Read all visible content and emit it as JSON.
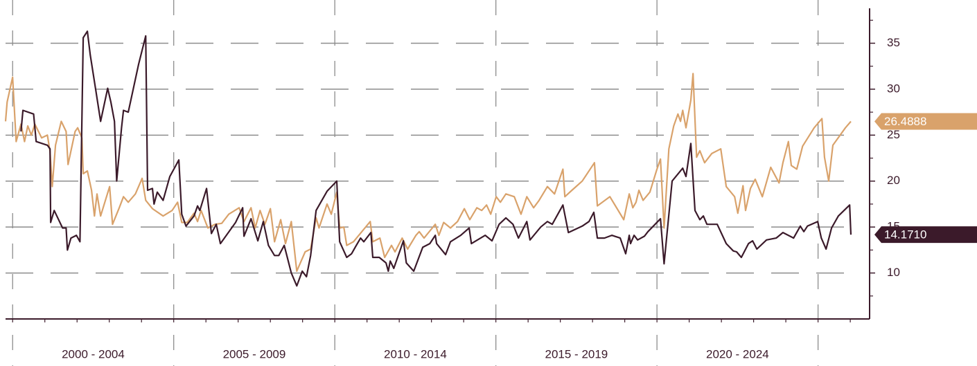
{
  "chart_data": {
    "type": "line",
    "xlim": [
      1999.78,
      2026.6
    ],
    "x_gridlines": [
      2000,
      2005,
      2010,
      2015,
      2020,
      2025
    ],
    "xminorticks": [
      2000,
      2001,
      2002,
      2003,
      2004,
      2005,
      2006,
      2007,
      2008,
      2009,
      2010,
      2011,
      2012,
      2013,
      2014,
      2015,
      2016,
      2017,
      2018,
      2019,
      2020,
      2021,
      2022,
      2023,
      2024,
      2025,
      2026
    ],
    "xticks": [
      {
        "value": 2002.5,
        "label": "2000 - 2004"
      },
      {
        "value": 2007.5,
        "label": "2005 - 2009"
      },
      {
        "value": 2012.5,
        "label": "2010 - 2014"
      },
      {
        "value": 2017.5,
        "label": "2015 - 2019"
      },
      {
        "value": 2022.5,
        "label": "2020 - 2024"
      }
    ],
    "ylim": [
      5,
      38.8
    ],
    "yticks": [
      10,
      15,
      20,
      25,
      30,
      35
    ],
    "yminorticks": [
      7.5,
      12.5,
      17.5,
      22.5,
      27.5,
      32.5,
      37.5
    ],
    "grid": true,
    "y_axis_side": "right",
    "series": [
      {
        "color": "#d9a26b",
        "end_label": "26.4888",
        "x": [
          1999.78,
          1999.83,
          2000.0,
          2000.11,
          2000.26,
          2000.37,
          2000.47,
          2000.58,
          2000.69,
          2000.9,
          2001.08,
          2001.16,
          2001.23,
          2001.33,
          2001.51,
          2001.66,
          2001.72,
          2001.94,
          2002.02,
          2002.15,
          2002.19,
          2002.32,
          2002.45,
          2002.54,
          2002.62,
          2002.73,
          2003.01,
          2003.1,
          2003.31,
          2003.44,
          2003.59,
          2003.81,
          2004.02,
          2004.13,
          2004.34,
          2004.67,
          2004.95,
          2005.12,
          2005.25,
          2005.42,
          2005.63,
          2005.74,
          2005.85,
          2006.06,
          2006.28,
          2006.49,
          2006.71,
          2007.03,
          2007.18,
          2007.4,
          2007.53,
          2007.68,
          2007.83,
          2008.0,
          2008.13,
          2008.32,
          2008.47,
          2008.65,
          2008.82,
          2009.08,
          2009.25,
          2009.42,
          2009.51,
          2009.76,
          2009.89,
          2010.06,
          2010.15,
          2010.28,
          2010.37,
          2010.58,
          2010.84,
          2011.1,
          2011.18,
          2011.4,
          2011.55,
          2011.76,
          2011.87,
          2012.09,
          2012.26,
          2012.52,
          2012.62,
          2012.77,
          2013.12,
          2013.23,
          2013.38,
          2013.59,
          2013.81,
          2014.02,
          2014.19,
          2014.41,
          2014.56,
          2014.71,
          2014.84,
          2015.01,
          2015.14,
          2015.31,
          2015.57,
          2015.78,
          2015.96,
          2016.17,
          2016.34,
          2016.6,
          2016.82,
          2017.08,
          2017.14,
          2017.36,
          2017.68,
          2018.06,
          2018.15,
          2018.54,
          2018.97,
          2019.14,
          2019.25,
          2019.35,
          2019.44,
          2019.57,
          2019.78,
          2020.0,
          2020.11,
          2020.22,
          2020.37,
          2020.52,
          2020.65,
          2020.73,
          2020.8,
          2020.9,
          2021.05,
          2021.12,
          2021.23,
          2021.33,
          2021.48,
          2021.7,
          2021.98,
          2022.15,
          2022.41,
          2022.51,
          2022.67,
          2022.75,
          2022.9,
          2023.05,
          2023.27,
          2023.53,
          2023.79,
          2023.91,
          2024.08,
          2024.17,
          2024.34,
          2024.52,
          2024.88,
          2025.12,
          2025.2,
          2025.33,
          2025.46,
          2025.85,
          2026.02
        ],
        "values": [
          26.5,
          28.6,
          31.3,
          24.3,
          26.2,
          24.3,
          26.0,
          25.0,
          26.2,
          24.7,
          25.0,
          23.2,
          19.4,
          23.9,
          26.5,
          25.4,
          21.8,
          25.4,
          25.8,
          24.7,
          20.8,
          21.1,
          19.0,
          16.2,
          18.6,
          16.2,
          19.4,
          15.3,
          17.1,
          18.3,
          17.7,
          18.6,
          20.3,
          17.9,
          17.0,
          16.2,
          16.8,
          17.7,
          15.5,
          15.5,
          16.5,
          15.6,
          16.8,
          14.9,
          15.3,
          15.4,
          16.4,
          17.1,
          15.6,
          17.1,
          14.9,
          16.8,
          15.3,
          17.0,
          13.4,
          15.8,
          13.2,
          15.6,
          10.2,
          12.3,
          12.6,
          16.0,
          14.9,
          17.5,
          16.4,
          18.8,
          14.9,
          15.0,
          13.0,
          13.4,
          14.5,
          15.6,
          13.4,
          13.8,
          11.7,
          13.0,
          12.3,
          13.8,
          12.6,
          14.1,
          14.5,
          13.8,
          15.3,
          14.1,
          15.5,
          14.9,
          15.6,
          17.0,
          15.8,
          17.1,
          16.8,
          17.4,
          16.4,
          18.3,
          17.7,
          18.6,
          18.3,
          16.4,
          18.3,
          17.1,
          17.9,
          19.4,
          18.6,
          21.3,
          18.3,
          19.0,
          20.0,
          22.0,
          17.3,
          18.3,
          15.8,
          18.6,
          17.1,
          17.7,
          19.0,
          17.9,
          18.8,
          21.3,
          22.4,
          14.9,
          23.5,
          26.0,
          27.3,
          26.5,
          27.7,
          25.8,
          28.8,
          31.7,
          22.6,
          23.3,
          22.0,
          23.0,
          23.5,
          19.4,
          18.3,
          16.5,
          19.5,
          16.8,
          19.2,
          20.2,
          18.3,
          21.5,
          19.8,
          22.0,
          24.3,
          21.7,
          21.3,
          23.8,
          25.8,
          26.8,
          22.6,
          20.0,
          23.9,
          25.8,
          26.4888
        ]
      },
      {
        "color": "#3b1a2a",
        "end_label": "14.1710",
        "x": [
          2000.26,
          2000.32,
          2000.65,
          2000.73,
          2001.08,
          2001.16,
          2001.18,
          2001.29,
          2001.55,
          2001.66,
          2001.7,
          2001.81,
          2001.98,
          2002.09,
          2002.19,
          2002.32,
          2002.41,
          2002.58,
          2002.73,
          2002.95,
          2003.05,
          2003.16,
          2003.23,
          2003.38,
          2003.44,
          2003.59,
          2003.91,
          2004.13,
          2004.19,
          2004.34,
          2004.39,
          2004.49,
          2004.67,
          2004.88,
          2005.16,
          2005.25,
          2005.38,
          2005.63,
          2005.74,
          2005.81,
          2006.02,
          2006.17,
          2006.32,
          2006.45,
          2006.92,
          2007.14,
          2007.18,
          2007.4,
          2007.61,
          2007.78,
          2007.94,
          2008.13,
          2008.26,
          2008.43,
          2008.65,
          2008.82,
          2008.99,
          2009.12,
          2009.25,
          2009.42,
          2009.76,
          2010.06,
          2010.15,
          2010.37,
          2010.52,
          2010.65,
          2010.8,
          2010.9,
          2011.12,
          2011.18,
          2011.38,
          2011.59,
          2011.66,
          2011.72,
          2011.83,
          2012.13,
          2012.22,
          2012.45,
          2012.73,
          2012.95,
          2013.12,
          2013.16,
          2013.44,
          2013.59,
          2013.91,
          2014.17,
          2014.24,
          2014.67,
          2014.88,
          2015.1,
          2015.31,
          2015.53,
          2015.7,
          2015.96,
          2016.06,
          2016.39,
          2016.6,
          2016.75,
          2017.08,
          2017.25,
          2017.68,
          2017.89,
          2018.04,
          2018.15,
          2018.37,
          2018.6,
          2018.86,
          2019.03,
          2019.14,
          2019.18,
          2019.29,
          2019.4,
          2019.61,
          2019.72,
          2020.11,
          2020.22,
          2020.47,
          2020.8,
          2020.9,
          2021.05,
          2021.18,
          2021.33,
          2021.44,
          2021.55,
          2021.87,
          2022.15,
          2022.37,
          2022.47,
          2022.62,
          2022.84,
          2022.97,
          2023.1,
          2023.4,
          2023.7,
          2023.91,
          2024.24,
          2024.45,
          2024.56,
          2024.67,
          2024.99,
          2025.1,
          2025.25,
          2025.42,
          2025.63,
          2025.98,
          2026.02
        ],
        "values": [
          25.4,
          27.7,
          27.3,
          24.3,
          23.9,
          23.5,
          15.5,
          16.8,
          14.9,
          14.9,
          12.5,
          13.8,
          14.1,
          13.4,
          35.6,
          36.3,
          33.7,
          29.9,
          26.5,
          30.1,
          28.6,
          26.5,
          20.0,
          25.8,
          27.7,
          27.5,
          32.7,
          35.8,
          19.0,
          19.2,
          17.5,
          18.8,
          17.9,
          20.5,
          22.3,
          16.4,
          15.1,
          16.2,
          17.3,
          16.8,
          19.2,
          14.3,
          15.3,
          13.2,
          15.5,
          17.1,
          14.0,
          15.9,
          13.5,
          15.6,
          13.0,
          11.9,
          11.9,
          13.0,
          10.0,
          8.6,
          10.2,
          9.6,
          11.9,
          16.8,
          18.9,
          20.0,
          13.4,
          11.7,
          12.1,
          12.9,
          13.8,
          13.4,
          14.4,
          11.7,
          11.7,
          11.1,
          10.2,
          11.3,
          10.5,
          13.5,
          11.1,
          10.2,
          12.8,
          13.2,
          14.1,
          13.2,
          12.0,
          13.4,
          14.1,
          14.9,
          13.2,
          14.1,
          13.5,
          15.3,
          16.0,
          15.3,
          13.8,
          15.6,
          13.6,
          15.0,
          15.6,
          15.3,
          17.4,
          14.4,
          15.1,
          15.6,
          16.6,
          13.8,
          13.8,
          14.1,
          13.8,
          12.1,
          14.1,
          13.2,
          14.1,
          13.6,
          14.0,
          14.5,
          15.9,
          11.0,
          20.0,
          21.4,
          20.5,
          24.1,
          16.8,
          15.8,
          16.2,
          15.3,
          15.3,
          13.2,
          12.4,
          12.3,
          11.7,
          13.2,
          13.5,
          12.6,
          13.6,
          13.8,
          14.4,
          13.8,
          15.1,
          14.5,
          15.1,
          15.6,
          13.8,
          12.6,
          14.9,
          16.2,
          17.4,
          14.171
        ]
      }
    ]
  }
}
